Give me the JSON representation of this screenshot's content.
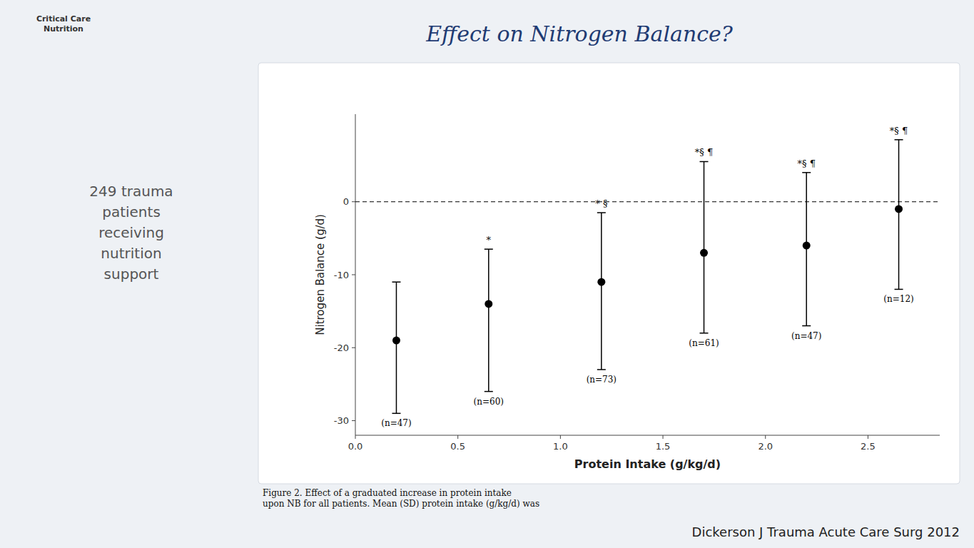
{
  "chart_data": {
    "type": "scatter",
    "title": "Effect on Nitrogen Balance?",
    "subtitle": "249 trauma\npatients\nreceiving\nnutrition\nsupport",
    "logo": "Critical Care\nNutrition",
    "caption": "Figure 2.  Effect of a graduated increase in protein intake\nupon NB for all patients. Mean (SD) protein intake (g/kg/d) was",
    "citation": "Dickerson J Trauma Acute Care Surg 2012",
    "x_label": "Protein Intake (g/kg/d)",
    "y_label": "Nitrogen Balance (g/d)",
    "xlim": [
      0.0,
      2.85
    ],
    "ylim": [
      -32,
      12
    ],
    "xticks": [
      {
        "value": 0.0,
        "label": "0.0"
      },
      0.5,
      {
        "value": 1.0,
        "label": "1.0"
      },
      1.5,
      {
        "value": 2.0,
        "label": "2.0"
      },
      2.5
    ],
    "yticks": [
      0,
      -10,
      -20,
      -30
    ],
    "x": [
      0.2,
      0.65,
      1.2,
      1.7,
      2.2,
      2.65
    ],
    "values": [
      -19.0,
      -14.0,
      -11.0,
      -7.0,
      -6.0,
      -1.0
    ],
    "upper": [
      -11.0,
      -6.5,
      -1.5,
      5.5,
      4.0,
      8.5
    ],
    "lower": [
      -29.0,
      -26.0,
      -23.0,
      -18.0,
      -17.0,
      -12.0
    ],
    "labels": [
      "(n=47)",
      "(n=60)",
      "(n=73)",
      "(n=61)",
      "(n=47)",
      "(n=12)"
    ],
    "annotations": [
      null,
      "*",
      "* §",
      "*§ ¶",
      "*§ ¶",
      "*§ ¶"
    ],
    "reference_line": 0,
    "color": "#000000",
    "grid": false
  }
}
